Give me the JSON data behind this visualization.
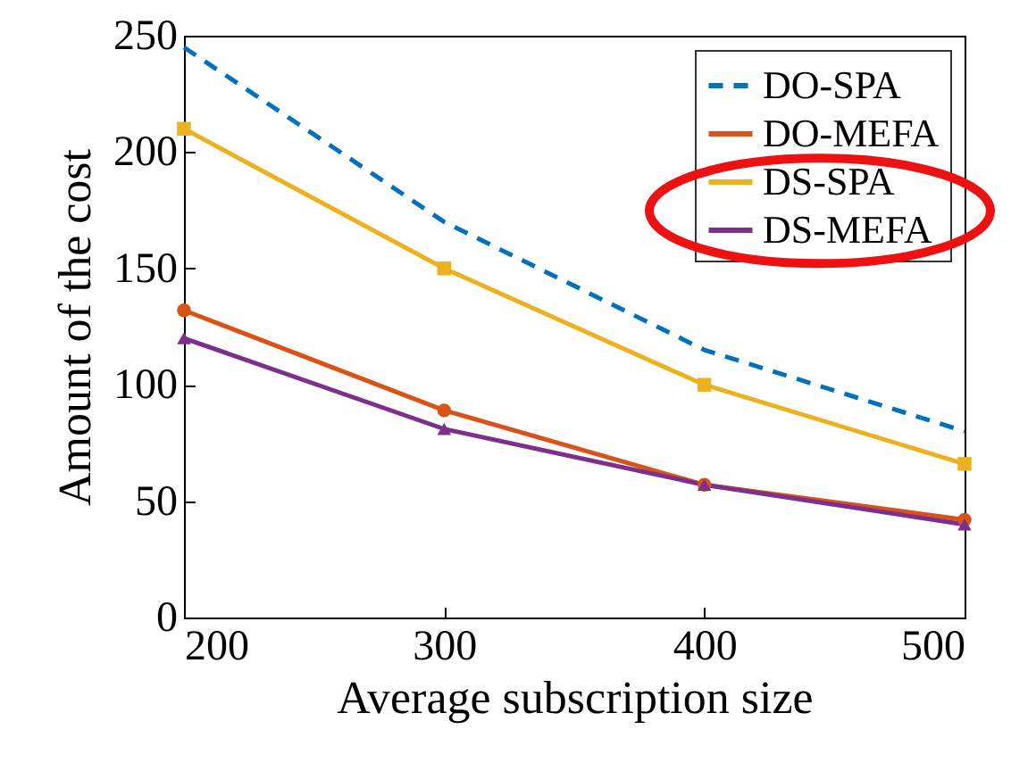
{
  "chart_data": {
    "type": "line",
    "xlabel": "Average subscription size",
    "ylabel": "Amount of the cost",
    "x": [
      200,
      300,
      400,
      500
    ],
    "xlim": [
      200,
      500
    ],
    "xticks": [
      200,
      300,
      400,
      500
    ],
    "ylim": [
      0,
      250
    ],
    "yticks": [
      0,
      50,
      100,
      150,
      200,
      250
    ],
    "grid": false,
    "legend": "top right",
    "series": [
      {
        "name": "DO-SPA",
        "color": "#0072bd",
        "values": [
          245,
          170,
          115,
          80
        ],
        "marker": "none",
        "line_style": "dashed"
      },
      {
        "name": "DO-MEFA",
        "color": "#d95319",
        "values": [
          132,
          89,
          57,
          42
        ],
        "marker": "circle",
        "line_style": "solid"
      },
      {
        "name": "DS-SPA",
        "color": "#edb120",
        "values": [
          210,
          150,
          100,
          66
        ],
        "marker": "square",
        "line_style": "solid"
      },
      {
        "name": "DS-MEFA",
        "color": "#7e2f8e",
        "values": [
          120,
          81,
          57,
          40
        ],
        "marker": "triangle",
        "line_style": "solid"
      }
    ]
  }
}
